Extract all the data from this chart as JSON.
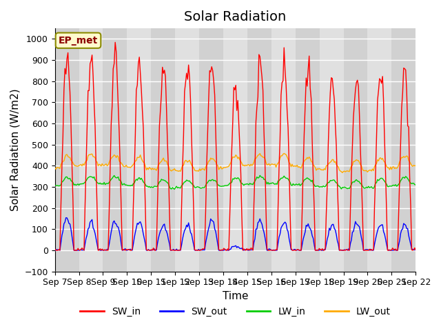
{
  "title": "Solar Radiation",
  "xlabel": "Time",
  "ylabel": "Solar Radiation (W/m2)",
  "ylim": [
    -100,
    1050
  ],
  "yticks": [
    -100,
    0,
    100,
    200,
    300,
    400,
    500,
    600,
    700,
    800,
    900,
    1000
  ],
  "x_tick_labels": [
    "Sep 7",
    "Sep 8",
    "Sep 9",
    "Sep 10",
    "Sep 11",
    "Sep 12",
    "Sep 13",
    "Sep 14",
    "Sep 15",
    "Sep 16",
    "Sep 17",
    "Sep 18",
    "Sep 19",
    "Sep 20",
    "Sep 21",
    "Sep 22"
  ],
  "label_box_text": "EP_met",
  "legend_entries": [
    "SW_in",
    "SW_out",
    "LW_in",
    "LW_out"
  ],
  "line_colors": {
    "SW_in": "#ff0000",
    "SW_out": "#0000ff",
    "LW_in": "#00cc00",
    "LW_out": "#ffaa00"
  },
  "background_color": "#ffffff",
  "plot_bg_color": "#e0e0e0",
  "grid_color": "#ffffff",
  "title_fontsize": 14,
  "axis_label_fontsize": 11,
  "tick_fontsize": 9,
  "legend_fontsize": 10,
  "num_days": 15,
  "hours_per_day": 24,
  "SW_in_peaks": [
    940,
    900,
    905,
    885,
    885,
    875,
    883,
    780,
    900,
    885,
    875,
    800,
    800,
    855,
    850
  ],
  "SW_out_peaks": [
    150,
    130,
    140,
    128,
    120,
    118,
    140,
    20,
    140,
    130,
    118,
    120,
    130,
    120,
    120
  ],
  "LW_in_base": 305,
  "LW_out_base": 390,
  "LW_in_amplitude": 35,
  "LW_out_amplitude": 50
}
